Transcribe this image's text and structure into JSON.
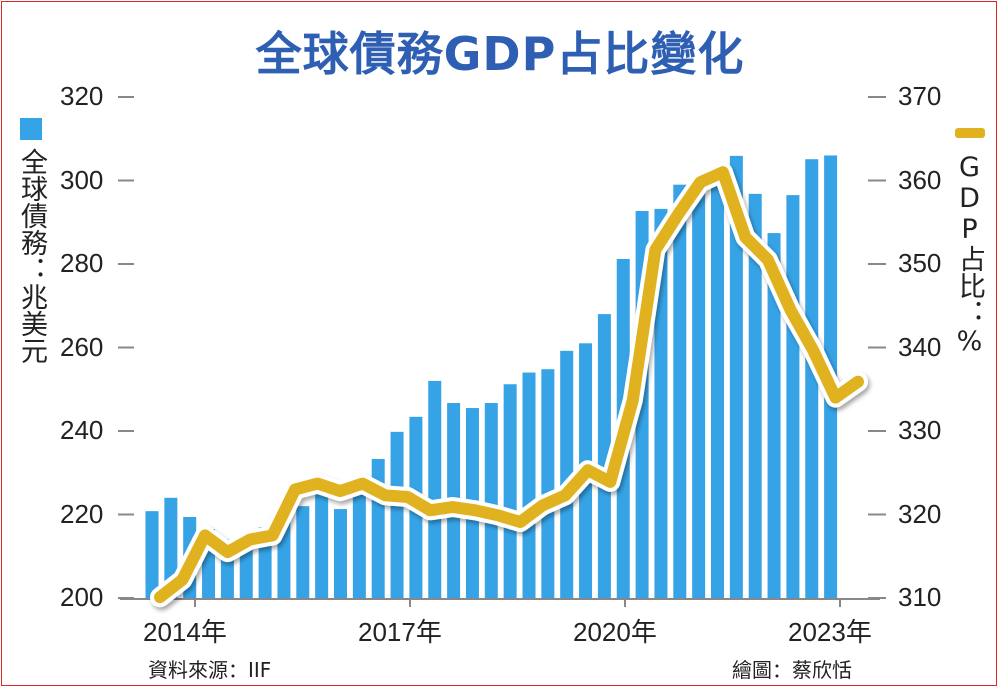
{
  "chart_data": {
    "type": "bar+line",
    "title": "全球債務GDP占比變化",
    "ylabel_left": "全球債務：兆美元",
    "ylabel_right": "GDP占比：%",
    "ylim_left": [
      200,
      320
    ],
    "ylim_right": [
      310,
      370
    ],
    "yticks_left": [
      200,
      220,
      240,
      260,
      280,
      300,
      320
    ],
    "yticks_right": [
      310,
      320,
      330,
      340,
      350,
      360,
      370
    ],
    "xtick_labels": [
      "2014年",
      "2017年",
      "2020年",
      "2023年"
    ],
    "series": [
      {
        "name": "全球債務",
        "type": "bar",
        "axis": "left",
        "color": "#36a3e6",
        "values": [
          220.8,
          224,
          219.4,
          216.5,
          214,
          215,
          217,
          219,
          222,
          225,
          221.3,
          225,
          233.3,
          239.8,
          243.4,
          252,
          246.7,
          245.5,
          246.7,
          251.2,
          254,
          254.8,
          259.2,
          261,
          268,
          281.2,
          292.7,
          293.2,
          299,
          299.2,
          302.5,
          305.9,
          296.8,
          287.4,
          296.5,
          305.1,
          306
        ]
      },
      {
        "name": "GDP占比",
        "type": "line",
        "axis": "right",
        "color": "#e0b21f",
        "values": [
          310.1,
          312.2,
          317.5,
          315.5,
          317,
          317.5,
          323,
          323.7,
          322.8,
          323.7,
          322.3,
          322.1,
          320.5,
          320.9,
          320.5,
          319.9,
          319.1,
          321.1,
          322.3,
          325.3,
          323.9,
          333.7,
          351.7,
          355.9,
          359.8,
          361,
          353.2,
          350.5,
          344.5,
          339.7,
          334,
          335.9
        ]
      }
    ],
    "grid": false,
    "legend": "left and right axis labels"
  },
  "footer": {
    "source": "資料來源：IIF",
    "credit": "繪圖：蔡欣恬"
  }
}
